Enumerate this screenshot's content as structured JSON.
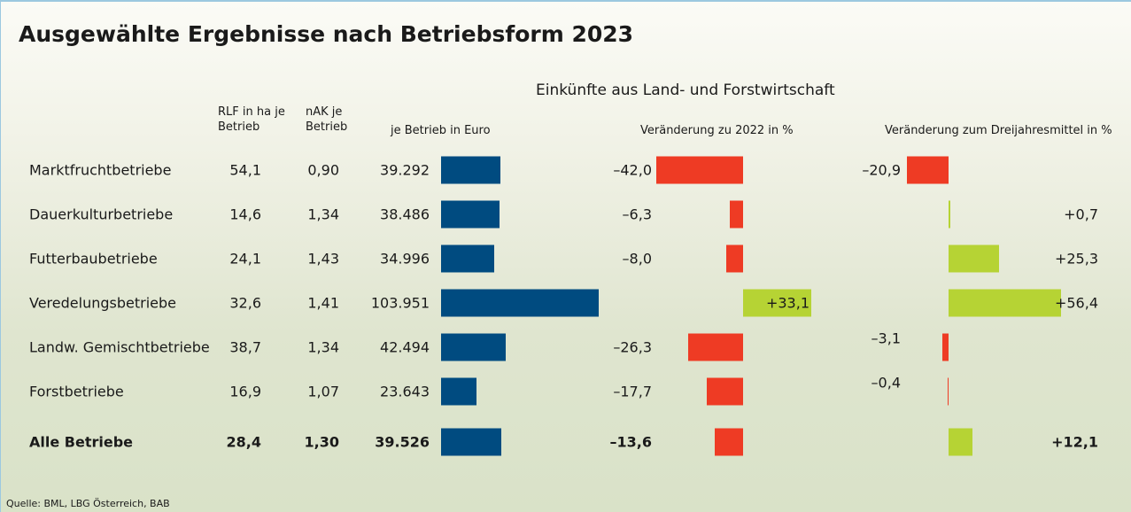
{
  "chart_data": {
    "type": "table-bar",
    "title": "Ausgewählte Ergebnisse nach Betriebsform 2023",
    "group_header": "Einkünfte aus Land- und Forstwirtschaft",
    "source": "Quelle: BML, LBG Österreich, BAB",
    "categories": [
      "Marktfruchtbetriebe",
      "Dauerkulturbetriebe",
      "Futterbaubetriebe",
      "Veredelungsbetriebe",
      "Landw. Gemischtbetriebe",
      "Forstbetriebe",
      "Alle Betriebe"
    ],
    "columns": [
      {
        "name": "RLF in ha je Betrieb",
        "values": [
          "54,1",
          "14,6",
          "24,1",
          "32,6",
          "38,7",
          "16,9",
          "28,4"
        ]
      },
      {
        "name": "nAK je Betrieb",
        "values": [
          "0,90",
          "1,34",
          "1,43",
          "1,41",
          "1,34",
          "1,07",
          "1,30"
        ]
      }
    ],
    "series": [
      {
        "name": "je Betrieb in Euro",
        "color": "#004b80",
        "values": [
          39292,
          38486,
          34996,
          103951,
          42494,
          23643,
          39526
        ],
        "value_labels": [
          "39.292",
          "38.486",
          "34.996",
          "103.951",
          "42.494",
          "23.643",
          "39.526"
        ]
      },
      {
        "name": "Veränderung zu 2022 in %",
        "color": "#ee3b24",
        "positive_color": "#b6d334",
        "values": [
          -42.0,
          -6.3,
          -8.0,
          33.1,
          -26.3,
          -17.7,
          -13.6
        ],
        "value_labels": [
          "–42,0",
          "–6,3",
          "–8,0",
          "+33,1",
          "–26,3",
          "–17,7",
          "–13,6"
        ]
      },
      {
        "name": "Veränderung zum Dreijahresmittel in %",
        "color": "#ee3b24",
        "positive_color": "#b6d334",
        "values": [
          -20.9,
          0.7,
          25.3,
          56.4,
          -3.1,
          -0.4,
          12.1
        ],
        "value_labels": [
          "–20,9",
          "+0,7",
          "+25,3",
          "+56,4",
          "–3,1",
          "–0,4",
          "+12,1"
        ]
      }
    ]
  }
}
